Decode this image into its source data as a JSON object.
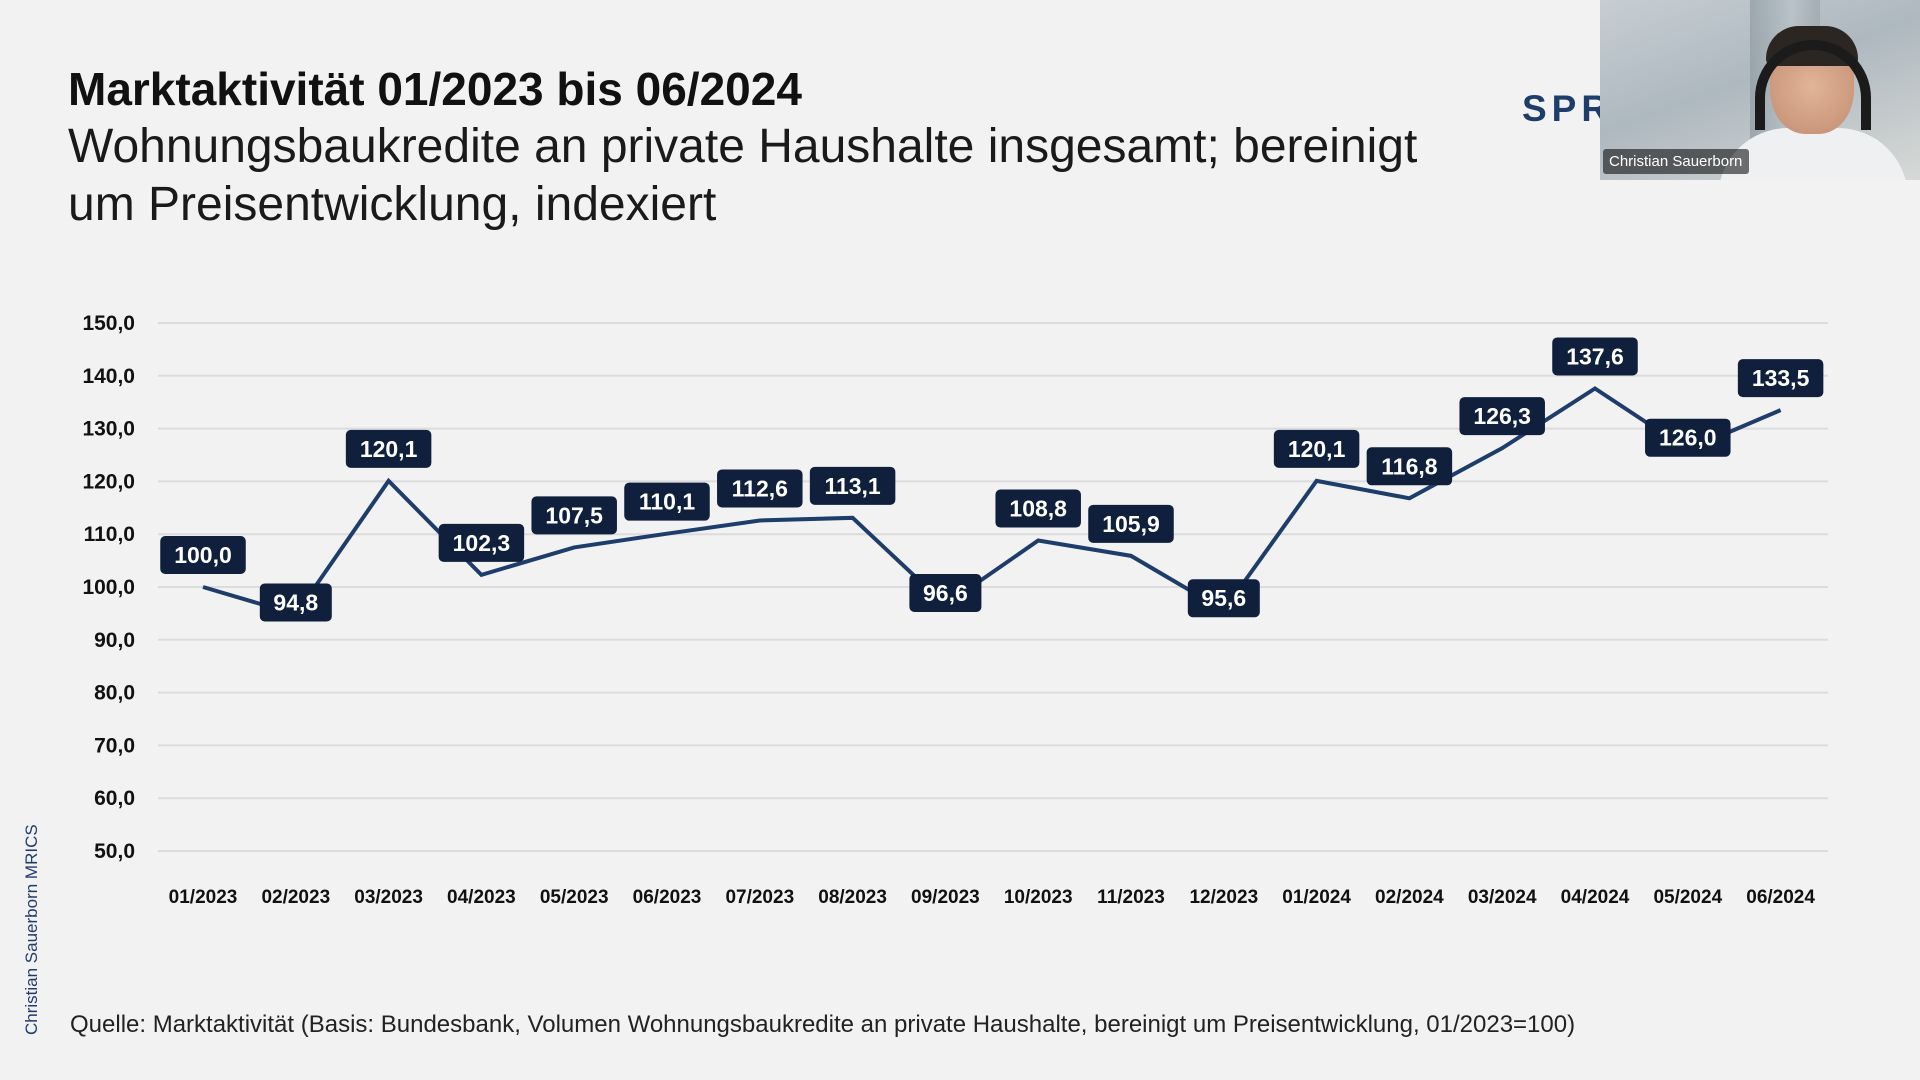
{
  "slide": {
    "title": "Marktaktivität 01/2023 bis 06/2024",
    "subtitle": "Wohnungsbaukredite an private Haushalte insgesamt; bereinigt um Preisentwicklung, indexiert",
    "logo_text": "SPR",
    "side_credit": "Christian Sauerborn MRICS",
    "source": "Quelle: Marktaktivität (Basis: Bundesbank, Volumen Wohnungsbaukredite an private Haushalte, bereinigt um Preisentwicklung, 01/2023=100)"
  },
  "webcam": {
    "name": "Christian Sauerborn"
  },
  "colors": {
    "line": "#1e3d6b",
    "label_bg": "#0f1f3c",
    "grid": "#dcdcdc",
    "background": "#f2f2f2"
  },
  "chart_data": {
    "type": "line",
    "title": "",
    "xlabel": "",
    "ylabel": "",
    "categories": [
      "01/2023",
      "02/2023",
      "03/2023",
      "04/2023",
      "05/2023",
      "06/2023",
      "07/2023",
      "08/2023",
      "09/2023",
      "10/2023",
      "11/2023",
      "12/2023",
      "01/2024",
      "02/2024",
      "03/2024",
      "04/2024",
      "05/2024",
      "06/2024"
    ],
    "values": [
      100.0,
      94.8,
      120.1,
      102.3,
      107.5,
      110.1,
      112.6,
      113.1,
      96.6,
      108.8,
      105.9,
      95.6,
      120.1,
      116.8,
      126.3,
      137.6,
      126.0,
      133.5
    ],
    "value_labels": [
      "100,0",
      "94,8",
      "120,1",
      "102,3",
      "107,5",
      "110,1",
      "112,6",
      "113,1",
      "96,6",
      "108,8",
      "105,9",
      "95,6",
      "120,1",
      "116,8",
      "126,3",
      "137,6",
      "126,0",
      "133,5"
    ],
    "ylim": [
      50,
      150
    ],
    "yticks": [
      150,
      140,
      130,
      120,
      110,
      100,
      90,
      80,
      70,
      60,
      50
    ],
    "ytick_labels": [
      "150,0",
      "140,0",
      "130,0",
      "120,0",
      "110,0",
      "100,0",
      "90,0",
      "80,0",
      "70,0",
      "60,0",
      "50,0"
    ],
    "grid": true,
    "legend": "none"
  }
}
